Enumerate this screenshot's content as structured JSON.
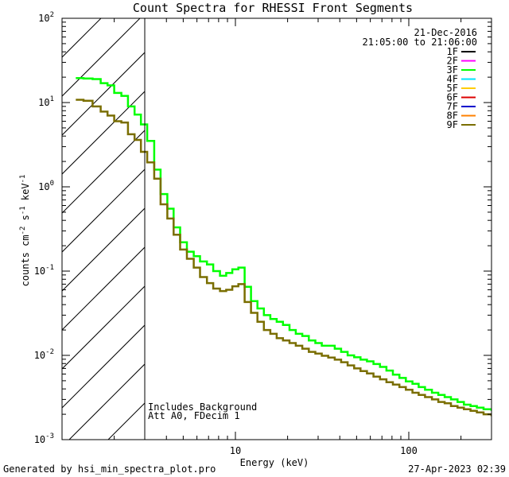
{
  "chart_data": {
    "type": "line",
    "title": "Count Spectra for RHESSI Front Segments",
    "xlabel": "Energy (keV)",
    "ylabel": {
      "base": "counts cm",
      "sup1": "-2",
      "mid": " s",
      "sup2": "-1",
      "end": " keV",
      "sup3": "-1"
    },
    "xscale": "log",
    "yscale": "log",
    "xlim": [
      1,
      300
    ],
    "ylim": [
      0.001,
      100
    ],
    "xticks": [
      {
        "value": 10,
        "label": "10"
      },
      {
        "value": 100,
        "label": "100"
      }
    ],
    "yticks": [
      {
        "value": 0.001,
        "base": "10",
        "exp": "-3"
      },
      {
        "value": 0.01,
        "base": "10",
        "exp": "-2"
      },
      {
        "value": 0.1,
        "base": "10",
        "exp": "-1"
      },
      {
        "value": 1,
        "base": "10",
        "exp": "0"
      },
      {
        "value": 10,
        "base": "10",
        "exp": "1"
      },
      {
        "value": 100,
        "base": "10",
        "exp": "2"
      }
    ],
    "date": "21-Dec-2016",
    "time_range": "21:05:00 to 21:06:00",
    "legend": [
      {
        "label": "1F",
        "color": "#000000"
      },
      {
        "label": "2F",
        "color": "#ff00ff"
      },
      {
        "label": "3F",
        "color": "#00ff00"
      },
      {
        "label": "4F",
        "color": "#00e5ff"
      },
      {
        "label": "5F",
        "color": "#ffcc00"
      },
      {
        "label": "6F",
        "color": "#dd0000"
      },
      {
        "label": "7F",
        "color": "#0000cc"
      },
      {
        "label": "8F",
        "color": "#ff8000"
      },
      {
        "label": "9F",
        "color": "#7a6e00"
      }
    ],
    "attenuator_limit_keV": 3,
    "annotation_lines": [
      "Includes Background",
      "Att A0, FDecim 1"
    ],
    "series": [
      {
        "name": "3F",
        "color": "#00ff00",
        "energy": [
          1.2,
          1.33,
          1.5,
          1.67,
          1.83,
          2.0,
          2.2,
          2.4,
          2.62,
          2.85,
          3.1,
          3.4,
          3.7,
          4.05,
          4.4,
          4.8,
          5.25,
          5.75,
          6.25,
          6.85,
          7.45,
          8.15,
          8.85,
          9.6,
          10.4,
          11.3,
          12.3,
          13.4,
          14.6,
          15.9,
          17.3,
          18.8,
          20.5,
          22.3,
          24.3,
          26.5,
          28.9,
          31.5,
          34.3,
          37.4,
          40.7,
          44.4,
          48.4,
          52.7,
          57.4,
          62.6,
          68.2,
          74.3,
          81.0,
          88.3,
          96.2,
          105,
          114,
          124,
          136,
          148,
          161,
          175,
          191,
          208,
          227,
          247,
          270,
          300
        ],
        "values": [
          19.5,
          19.3,
          19.0,
          17.0,
          16.0,
          13.0,
          12.0,
          9.0,
          7.2,
          5.5,
          3.5,
          1.6,
          0.82,
          0.55,
          0.33,
          0.22,
          0.17,
          0.15,
          0.13,
          0.12,
          0.1,
          0.088,
          0.095,
          0.105,
          0.11,
          0.065,
          0.044,
          0.036,
          0.03,
          0.027,
          0.025,
          0.023,
          0.02,
          0.018,
          0.017,
          0.015,
          0.014,
          0.013,
          0.013,
          0.012,
          0.011,
          0.01,
          0.0095,
          0.0089,
          0.0085,
          0.0079,
          0.0073,
          0.0066,
          0.0059,
          0.0054,
          0.0049,
          0.0046,
          0.0042,
          0.0039,
          0.0036,
          0.0034,
          0.0032,
          0.003,
          0.0028,
          0.0026,
          0.0025,
          0.0024,
          0.0023,
          0.0022
        ]
      },
      {
        "name": "9F",
        "color": "#7a6e00",
        "energy": [
          1.2,
          1.33,
          1.5,
          1.67,
          1.83,
          2.0,
          2.2,
          2.4,
          2.62,
          2.85,
          3.1,
          3.4,
          3.7,
          4.05,
          4.4,
          4.8,
          5.25,
          5.75,
          6.25,
          6.85,
          7.45,
          8.15,
          8.85,
          9.6,
          10.4,
          11.3,
          12.3,
          13.4,
          14.6,
          15.9,
          17.3,
          18.8,
          20.5,
          22.3,
          24.3,
          26.5,
          28.9,
          31.5,
          34.3,
          37.4,
          40.7,
          44.4,
          48.4,
          52.7,
          57.4,
          62.6,
          68.2,
          74.3,
          81.0,
          88.3,
          96.2,
          105,
          114,
          124,
          136,
          148,
          161,
          175,
          191,
          208,
          227,
          247,
          270,
          300
        ],
        "values": [
          10.8,
          10.5,
          9.0,
          7.8,
          7.0,
          6.0,
          5.8,
          4.2,
          3.6,
          2.6,
          1.95,
          1.25,
          0.62,
          0.42,
          0.27,
          0.18,
          0.14,
          0.11,
          0.085,
          0.072,
          0.062,
          0.058,
          0.06,
          0.066,
          0.07,
          0.043,
          0.032,
          0.025,
          0.02,
          0.018,
          0.016,
          0.015,
          0.014,
          0.013,
          0.012,
          0.011,
          0.0105,
          0.0099,
          0.0094,
          0.0089,
          0.0083,
          0.0076,
          0.007,
          0.0065,
          0.0061,
          0.0056,
          0.0052,
          0.0048,
          0.0045,
          0.0042,
          0.0039,
          0.0036,
          0.0034,
          0.0032,
          0.003,
          0.0028,
          0.0027,
          0.0025,
          0.0024,
          0.0023,
          0.0022,
          0.0021,
          0.002,
          0.0019
        ]
      }
    ]
  },
  "footer": {
    "generated_by": "Generated by hsi_min_spectra_plot.pro",
    "timestamp": "27-Apr-2023 02:39"
  }
}
